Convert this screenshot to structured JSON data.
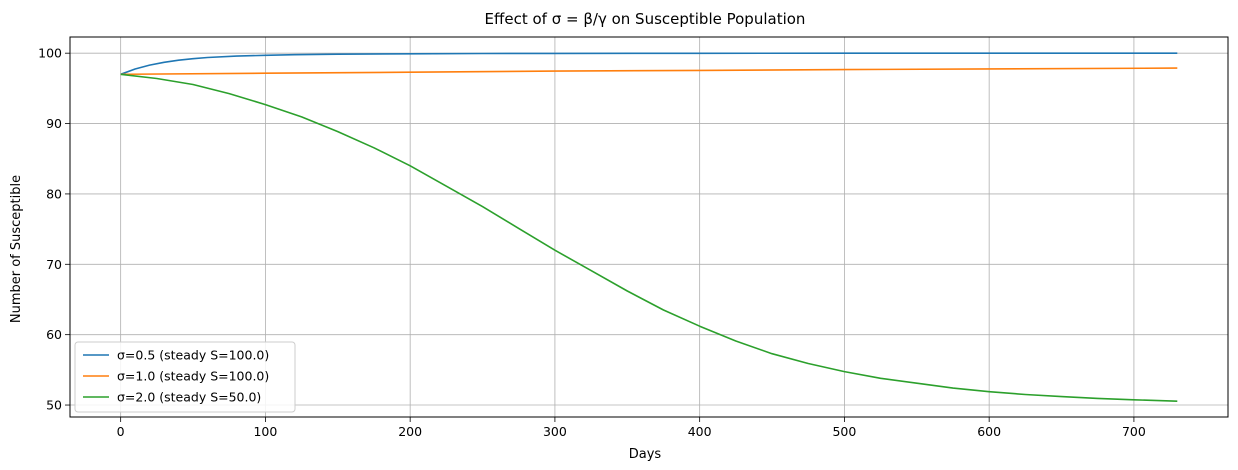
{
  "chart_data": {
    "type": "line",
    "title": "Effect of σ = β/γ on Susceptible Population",
    "xlabel": "Days",
    "ylabel": "Number of Susceptible",
    "xlim": [
      -35,
      765
    ],
    "ylim": [
      48.3,
      102.3
    ],
    "xticks": [
      0,
      100,
      200,
      300,
      400,
      500,
      600,
      700
    ],
    "yticks": [
      50,
      60,
      70,
      80,
      90,
      100
    ],
    "grid": true,
    "legend_position": "lower-left",
    "series": [
      {
        "name": "σ=0.5 (steady S=100.0)",
        "color": "#1f77b4",
        "x": [
          0,
          10,
          20,
          30,
          40,
          50,
          60,
          80,
          100,
          120,
          150,
          200,
          250,
          300,
          400,
          500,
          600,
          730
        ],
        "y": [
          97.0,
          97.75,
          98.3,
          98.7,
          99.0,
          99.22,
          99.38,
          99.58,
          99.7,
          99.78,
          99.85,
          99.91,
          99.95,
          99.97,
          99.99,
          100.0,
          100.0,
          100.0
        ]
      },
      {
        "name": "σ=1.0 (steady S=100.0)",
        "color": "#ff7f0e",
        "x": [
          0,
          100,
          200,
          300,
          400,
          500,
          600,
          730
        ],
        "y": [
          97.0,
          97.15,
          97.3,
          97.45,
          97.56,
          97.67,
          97.77,
          97.88
        ]
      },
      {
        "name": "σ=2.0 (steady S=50.0)",
        "color": "#2ca02c",
        "x": [
          0,
          25,
          50,
          75,
          100,
          125,
          150,
          175,
          200,
          225,
          250,
          275,
          300,
          325,
          350,
          375,
          400,
          425,
          450,
          475,
          500,
          525,
          550,
          575,
          600,
          625,
          650,
          675,
          700,
          730
        ],
        "y": [
          97.0,
          96.4,
          95.55,
          94.25,
          92.7,
          90.95,
          88.85,
          86.55,
          84.0,
          81.1,
          78.2,
          75.1,
          72.0,
          69.1,
          66.2,
          63.5,
          61.2,
          59.1,
          57.3,
          55.9,
          54.75,
          53.8,
          53.1,
          52.4,
          51.9,
          51.5,
          51.2,
          50.95,
          50.75,
          50.55
        ]
      }
    ]
  }
}
